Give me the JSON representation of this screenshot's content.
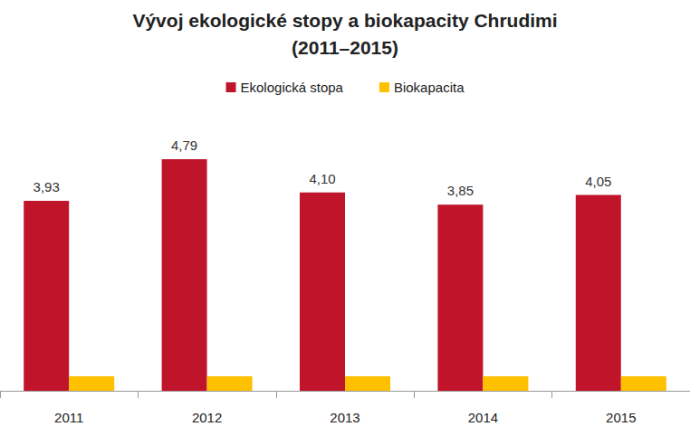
{
  "chart_data": {
    "type": "bar",
    "title": "Vývoj ekologické stopy a biokapacity Chrudimi\n(2011–2015)",
    "categories": [
      "2011",
      "2012",
      "2013",
      "2014",
      "2015"
    ],
    "series": [
      {
        "name": "Ekologická stopa",
        "color": "#c0142a",
        "values": [
          3.93,
          4.79,
          4.1,
          3.85,
          4.05
        ],
        "value_labels": [
          "3,93",
          "4,79",
          "4,10",
          "3,85",
          "4,05"
        ],
        "data_labels": true
      },
      {
        "name": "Biokapacita",
        "color": "#ffc000",
        "values": [
          0.3,
          0.3,
          0.3,
          0.3,
          0.3
        ],
        "data_labels": false
      }
    ],
    "ylim": [
      0,
      5.5
    ],
    "grid": false,
    "legend": "top",
    "tick_labels": "x"
  }
}
